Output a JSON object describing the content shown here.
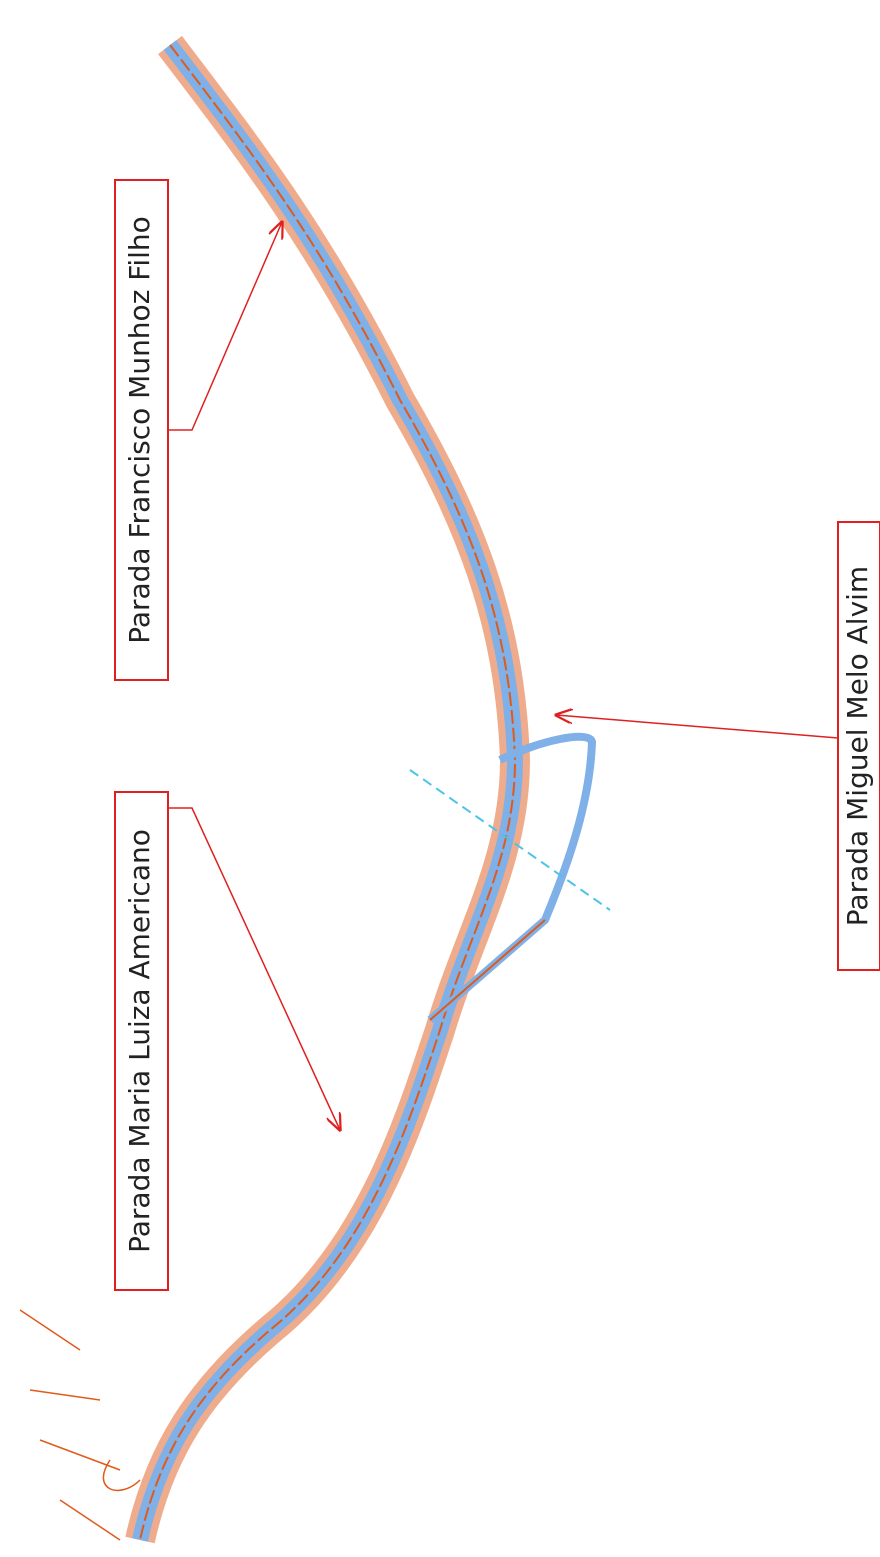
{
  "labels": [
    "Parada Francisco Munhoz Filho",
    "Parada Maria Luiza Americano",
    "Parada Miguel Melo Alvim"
  ]
}
